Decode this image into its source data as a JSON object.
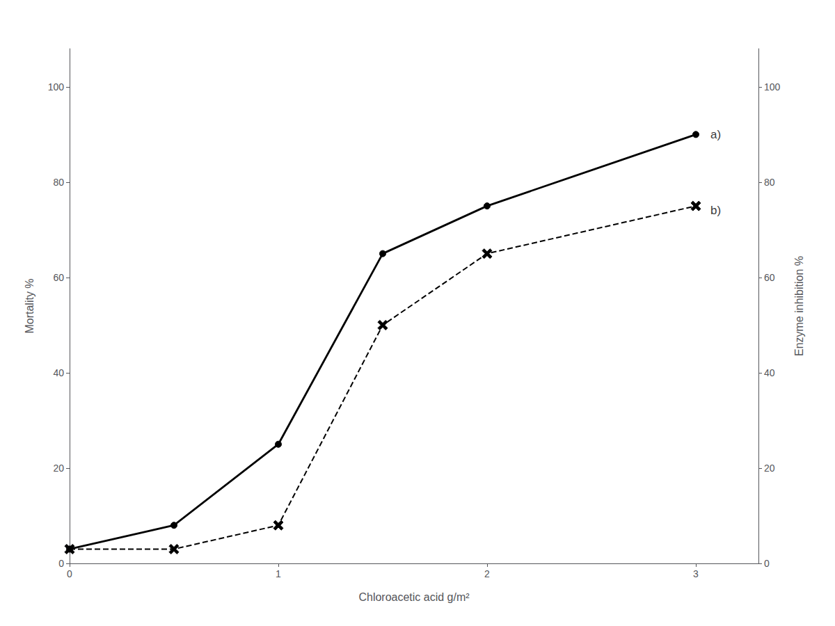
{
  "chart_data": {
    "type": "line",
    "x": [
      0,
      0.5,
      1.0,
      1.5,
      2.0,
      3.0
    ],
    "series": [
      {
        "values": [
          3,
          8,
          25,
          65,
          75,
          90
        ],
        "color": "#000000",
        "marker": "circle",
        "line_style": "solid"
      },
      {
        "values": [
          3,
          3,
          8,
          50,
          65,
          75
        ],
        "color": "#000000",
        "marker": "x",
        "line_style": "dashed"
      }
    ],
    "xlabel": "Chloroacetic acid g/m²",
    "ylabel": "Mortality %",
    "y2label": "Enzyme inhibition %",
    "xlim": [
      0,
      3.3
    ],
    "xticks": [
      0,
      1,
      2,
      3
    ],
    "ylim": [
      0,
      108
    ],
    "yticks": [
      0,
      20,
      40,
      60,
      80,
      100
    ],
    "y2lim": [
      0,
      108
    ],
    "y2ticks": [
      0,
      20,
      40,
      60,
      80,
      100
    ],
    "annotations": [
      {
        "text": "a)",
        "x": 3.07,
        "y": 90
      },
      {
        "text": "b)",
        "x": 3.07,
        "y": 74
      }
    ],
    "grid": false
  }
}
